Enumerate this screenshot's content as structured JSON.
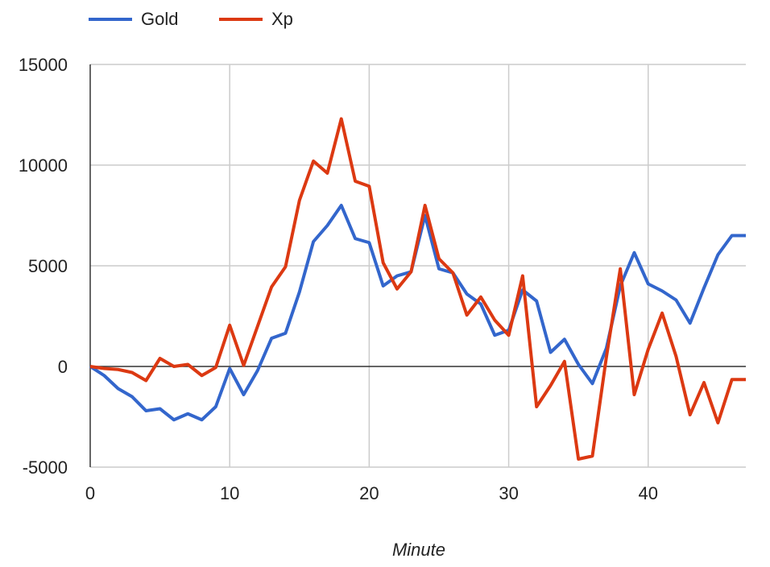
{
  "chart_data": {
    "type": "line",
    "xlabel": "Minute",
    "ylabel": "",
    "xlim": [
      0,
      47
    ],
    "ylim": [
      -5000,
      15000
    ],
    "x_ticks": [
      0,
      10,
      20,
      30,
      40
    ],
    "y_ticks": [
      15000,
      10000,
      5000,
      0,
      -5000
    ],
    "x_tick_labels": [
      "0",
      "10",
      "20",
      "30",
      "40"
    ],
    "y_tick_labels": [
      "15000",
      "10000",
      "5000",
      "0",
      "-5000"
    ],
    "grid": true,
    "legend_position": "top-left",
    "x": [
      0,
      1,
      2,
      3,
      4,
      5,
      6,
      7,
      8,
      9,
      10,
      11,
      12,
      13,
      14,
      15,
      16,
      17,
      18,
      19,
      20,
      21,
      22,
      23,
      24,
      25,
      26,
      27,
      28,
      29,
      30,
      31,
      32,
      33,
      34,
      35,
      36,
      37,
      38,
      39,
      40,
      41,
      42,
      43,
      44,
      45,
      46,
      47
    ],
    "series": [
      {
        "name": "Gold",
        "color": "#3366cc",
        "values": [
          0,
          -450,
          -1100,
          -1500,
          -2200,
          -2100,
          -2650,
          -2350,
          -2650,
          -2000,
          -100,
          -1400,
          -200,
          1400,
          1650,
          3700,
          6200,
          7000,
          8000,
          6350,
          6150,
          4000,
          4500,
          4700,
          7500,
          4850,
          4650,
          3600,
          3100,
          1550,
          1800,
          3800,
          3250,
          700,
          1350,
          100,
          -850,
          900,
          4000,
          5650,
          4100,
          3750,
          3300,
          2150,
          3900,
          5550,
          6500,
          6500
        ]
      },
      {
        "name": "Xp",
        "color": "#dc3912",
        "values": [
          0,
          -100,
          -150,
          -300,
          -700,
          400,
          0,
          100,
          -450,
          -50,
          2050,
          50,
          2000,
          3950,
          4950,
          8250,
          10200,
          9600,
          12300,
          9200,
          8950,
          5150,
          3850,
          4700,
          8000,
          5350,
          4650,
          2550,
          3450,
          2300,
          1550,
          4500,
          -2000,
          -950,
          250,
          -4600,
          -4450,
          450,
          4850,
          -1400,
          850,
          2650,
          500,
          -2400,
          -800,
          -2800,
          -650,
          -650
        ]
      }
    ]
  }
}
